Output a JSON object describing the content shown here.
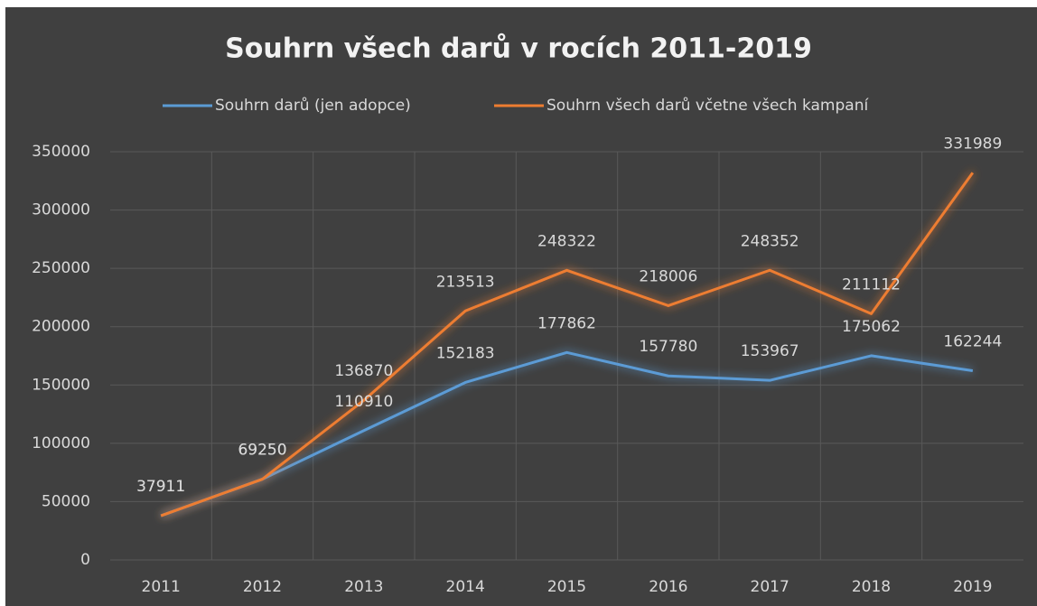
{
  "chart_data": {
    "type": "line",
    "title": "Souhrn všech darů v rocích 2011-2019",
    "categories": [
      "2011",
      "2012",
      "2013",
      "2014",
      "2015",
      "2016",
      "2017",
      "2018",
      "2019"
    ],
    "series": [
      {
        "name": "Souhrn darů (jen adopce)",
        "color": "#5b9bd5",
        "values": [
          37911,
          69250,
          110910,
          152183,
          177862,
          157780,
          153967,
          175062,
          162244
        ]
      },
      {
        "name": "Souhrn všech darů včetne všech kampaní",
        "color": "#ed7d31",
        "values": [
          37911,
          69250,
          136870,
          213513,
          248322,
          218006,
          248352,
          211112,
          331989
        ]
      }
    ],
    "ylim": [
      0,
      350000
    ],
    "yticks": [
      0,
      50000,
      100000,
      150000,
      200000,
      250000,
      300000,
      350000
    ],
    "grid": true,
    "legend": "top"
  }
}
